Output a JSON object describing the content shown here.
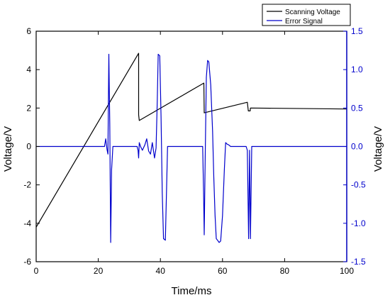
{
  "chart_data": {
    "type": "line",
    "xlabel": "Time/ms",
    "ylabel_left": "Voltage/V",
    "ylabel_right": "Voltage/V",
    "xlim": [
      0,
      100
    ],
    "ylim_left": [
      -6,
      6
    ],
    "ylim_right": [
      -1.5,
      1.5
    ],
    "x_ticks": [
      0,
      20,
      40,
      60,
      80,
      100
    ],
    "y_left_ticks": [
      -6,
      -4,
      -2,
      0,
      2,
      4,
      6
    ],
    "y_right_ticks": [
      -1.5,
      -1.0,
      -0.5,
      0.0,
      0.5,
      1.0,
      1.5
    ],
    "x_tick_labels": [
      "0",
      "20",
      "40",
      "60",
      "80",
      "100"
    ],
    "y_left_tick_labels": [
      "-6",
      "-4",
      "-2",
      "0",
      "2",
      "4",
      "6"
    ],
    "y_right_tick_labels": [
      "-1.5",
      "-1.0",
      "-0.5",
      "0.0",
      "0.5",
      "1.0",
      "1.5"
    ],
    "grid": false,
    "legend_position": "top-right",
    "colors": {
      "scanning": "#000000",
      "error": "#0000cc",
      "right_axis": "#0000cc"
    },
    "series": [
      {
        "name": "Scanning Voltage",
        "axis": "left",
        "x": [
          0,
          33,
          33,
          33.2,
          54,
          54.1,
          68,
          68.3,
          68.9,
          69,
          100
        ],
        "y": [
          -4.2,
          4.85,
          1.65,
          1.35,
          3.3,
          1.75,
          2.3,
          1.85,
          1.85,
          2.0,
          1.95
        ]
      },
      {
        "name": "Error Signal",
        "axis": "right",
        "x": [
          0,
          22.0,
          22.4,
          22.8,
          23.1,
          23.4,
          23.7,
          24.0,
          24.3,
          24.7,
          32.5,
          32.8,
          33.0,
          33.2,
          33.6,
          34.2,
          35.0,
          35.6,
          36.2,
          36.8,
          37.4,
          38.1,
          38.6,
          39.0,
          39.3,
          39.8,
          40.2,
          40.6,
          41.0,
          41.6,
          42.3,
          53.6,
          53.9,
          54.1,
          54.4,
          54.8,
          55.2,
          55.6,
          56.2,
          56.8,
          57.2,
          57.6,
          58.0,
          58.4,
          58.9,
          59.4,
          60.0,
          60.6,
          61.0,
          61.5,
          62.0,
          62.6,
          67.6,
          68.0,
          68.4,
          68.7,
          69.0,
          69.4,
          100
        ],
        "y": [
          0.0,
          0.0,
          0.1,
          -0.04,
          -0.1,
          1.2,
          0.3,
          -1.25,
          -0.3,
          0.0,
          0.0,
          -0.05,
          -0.15,
          0.05,
          0.0,
          -0.05,
          0.02,
          0.1,
          -0.06,
          -0.1,
          0.05,
          -0.15,
          -0.02,
          0.6,
          1.2,
          1.18,
          0.4,
          -0.6,
          -1.2,
          -1.22,
          0.0,
          0.0,
          -0.6,
          -1.15,
          -0.2,
          0.9,
          1.12,
          1.1,
          0.8,
          0.2,
          -0.4,
          -0.9,
          -1.2,
          -1.22,
          -1.25,
          -1.23,
          -0.9,
          -0.3,
          0.05,
          0.03,
          0.02,
          0.0,
          0.0,
          -0.05,
          -1.2,
          -0.05,
          -1.2,
          0.0,
          0.0
        ]
      }
    ]
  }
}
